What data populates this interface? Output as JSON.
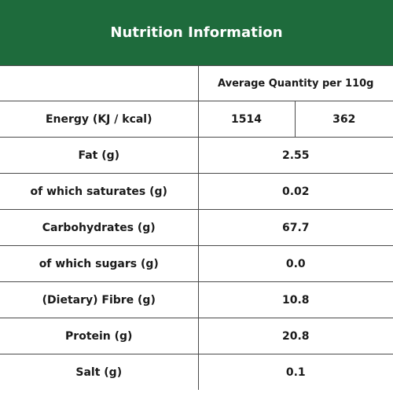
{
  "title": "Nutrition Information",
  "header": {
    "quantity_label": "Average Quantity per 110g"
  },
  "energy": {
    "label": "Energy (KJ / kcal)",
    "kj": "1514",
    "kcal": "362"
  },
  "rows": [
    {
      "label": "Fat (g)",
      "value": "2.55"
    },
    {
      "label": "of which saturates (g)",
      "value": "0.02"
    },
    {
      "label": "Carbohydrates (g)",
      "value": "67.7"
    },
    {
      "label": "of which sugars (g)",
      "value": "0.0"
    },
    {
      "label": "(Dietary) Fibre (g)",
      "value": "10.8"
    },
    {
      "label": "Protein (g)",
      "value": "20.8"
    },
    {
      "label": "Salt (g)",
      "value": "0.1"
    }
  ],
  "colors": {
    "header_bg": "#1e6b3c",
    "header_text": "#ffffff",
    "border": "#4a4a4a"
  }
}
